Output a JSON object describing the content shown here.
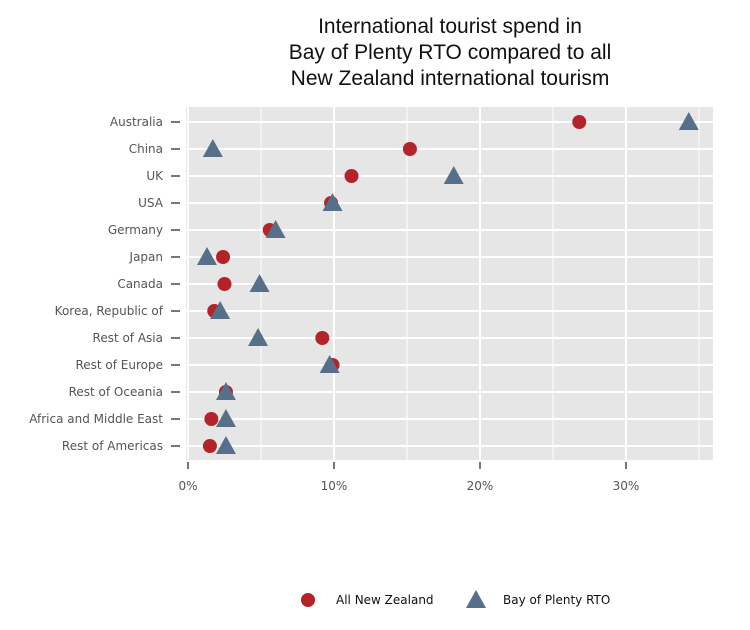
{
  "chart_data": {
    "type": "scatter",
    "title_lines": [
      "International tourist spend in",
      "Bay of Plenty RTO compared to all",
      "New Zealand international tourism"
    ],
    "categories": [
      "Australia",
      "China",
      "UK",
      "USA",
      "Germany",
      "Japan",
      "Canada",
      "Korea, Republic of",
      "Rest of Asia",
      "Rest of Europe",
      "Rest of Oceania",
      "Africa and Middle East",
      "Rest of Americas"
    ],
    "xlim": [
      0,
      36
    ],
    "xticks": [
      0,
      10,
      20,
      30
    ],
    "xtick_labels": [
      "0%",
      "10%",
      "20%",
      "30%"
    ],
    "grid": true,
    "legend_position": "bottom",
    "series": [
      {
        "name": "All New Zealand",
        "marker": "circle",
        "color": "#b5232a",
        "values": [
          26.8,
          15.2,
          11.2,
          9.8,
          5.6,
          2.4,
          2.5,
          1.8,
          9.2,
          9.9,
          2.6,
          1.6,
          1.5
        ]
      },
      {
        "name": "Bay of Plenty RTO",
        "marker": "triangle",
        "color": "#56708a",
        "values": [
          34.3,
          1.7,
          18.2,
          9.9,
          6.0,
          1.3,
          4.9,
          2.2,
          4.8,
          9.7,
          2.6,
          2.6,
          2.6
        ]
      }
    ]
  }
}
